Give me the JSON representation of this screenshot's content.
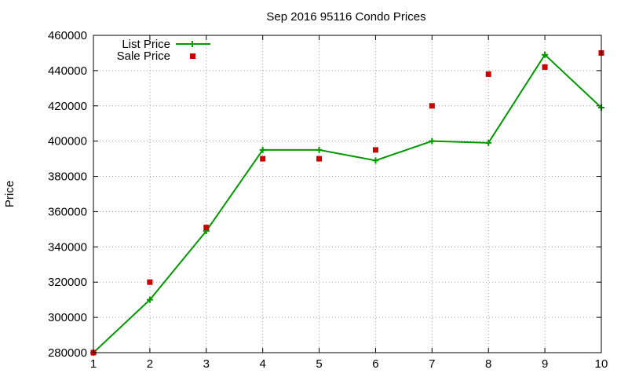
{
  "chart_data": {
    "type": "line",
    "title": "Sep 2016 95116 Condo Prices",
    "xlabel": "",
    "ylabel": "Price",
    "x": [
      1,
      2,
      3,
      4,
      5,
      6,
      7,
      8,
      9,
      10
    ],
    "xlim": [
      1,
      10
    ],
    "ylim": [
      280000,
      460000
    ],
    "xticks": [
      "1",
      "2",
      "3",
      "4",
      "5",
      "6",
      "7",
      "8",
      "9",
      "10"
    ],
    "yticks": [
      "280000",
      "300000",
      "320000",
      "340000",
      "360000",
      "380000",
      "400000",
      "420000",
      "440000",
      "460000"
    ],
    "grid": true,
    "legend_position": "top-left",
    "series": [
      {
        "name": "List Price",
        "style": "line-plus",
        "color": "#009900",
        "values": [
          280000,
          310000,
          349000,
          395000,
          395000,
          389000,
          400000,
          399000,
          449000,
          419000
        ]
      },
      {
        "name": "Sale Price",
        "style": "square-points",
        "color": "#cc0000",
        "values": [
          280000,
          320000,
          351000,
          390000,
          390000,
          395000,
          420000,
          438000,
          442000,
          450000
        ]
      }
    ]
  }
}
